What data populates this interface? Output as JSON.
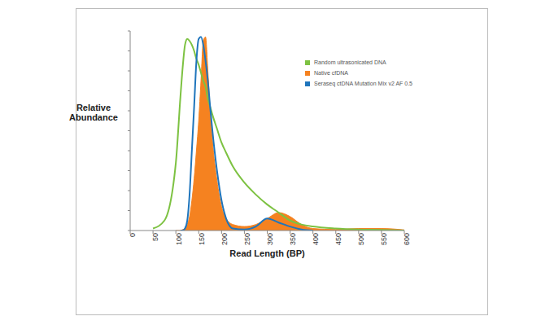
{
  "chart_data": {
    "type": "line",
    "x_label": "Read Length (BP)",
    "y_label": "Relative Abundance",
    "x": [
      0,
      25,
      50,
      75,
      100,
      110,
      115,
      120,
      125,
      130,
      135,
      140,
      145,
      150,
      155,
      160,
      165,
      170,
      175,
      180,
      190,
      200,
      210,
      225,
      250,
      275,
      300,
      325,
      350,
      375,
      400,
      450,
      500,
      550,
      600
    ],
    "series": [
      {
        "name": "Random ultrasonicated DNA",
        "color": "#7dc242",
        "type": "line",
        "values": [
          null,
          null,
          1,
          5,
          34,
          67,
          82,
          93,
          96,
          95,
          93,
          90,
          86,
          83,
          79,
          75,
          72,
          66,
          62,
          58,
          51,
          44,
          39,
          32,
          24,
          18,
          13,
          9,
          5,
          3,
          2,
          1,
          0.5,
          0.3,
          0
        ]
      },
      {
        "name": "Native cfDNA",
        "color": "#f58220",
        "type": "area",
        "values": [
          null,
          null,
          null,
          null,
          0,
          0,
          0.5,
          1,
          3,
          7,
          15,
          26,
          40,
          55,
          75,
          95,
          97,
          80,
          60,
          45,
          25,
          12,
          6,
          3,
          2,
          3,
          6,
          9,
          7,
          3,
          1,
          0.5,
          1,
          1,
          0.3
        ]
      },
      {
        "name": "Seraseq ctDNA Mutation Mix v2 AF 0.5",
        "color": "#1f75bc",
        "type": "line",
        "values": [
          null,
          null,
          null,
          null,
          null,
          0,
          0,
          1,
          5,
          18,
          40,
          62,
          85,
          96,
          97,
          93,
          85,
          75,
          62,
          50,
          30,
          15,
          6,
          1,
          0.5,
          2,
          6,
          4,
          2,
          0.5,
          0,
          null,
          null,
          null,
          null
        ]
      }
    ],
    "xlim": [
      0,
      600
    ],
    "xticks": [
      0,
      50,
      100,
      150,
      200,
      250,
      300,
      350,
      400,
      450,
      500,
      550,
      600
    ],
    "ylim": [
      0,
      100
    ],
    "yticks": [
      0,
      10,
      20,
      30,
      40,
      50,
      60,
      70,
      80,
      90,
      100
    ],
    "tick_labels": "x",
    "legend": "upper right"
  }
}
